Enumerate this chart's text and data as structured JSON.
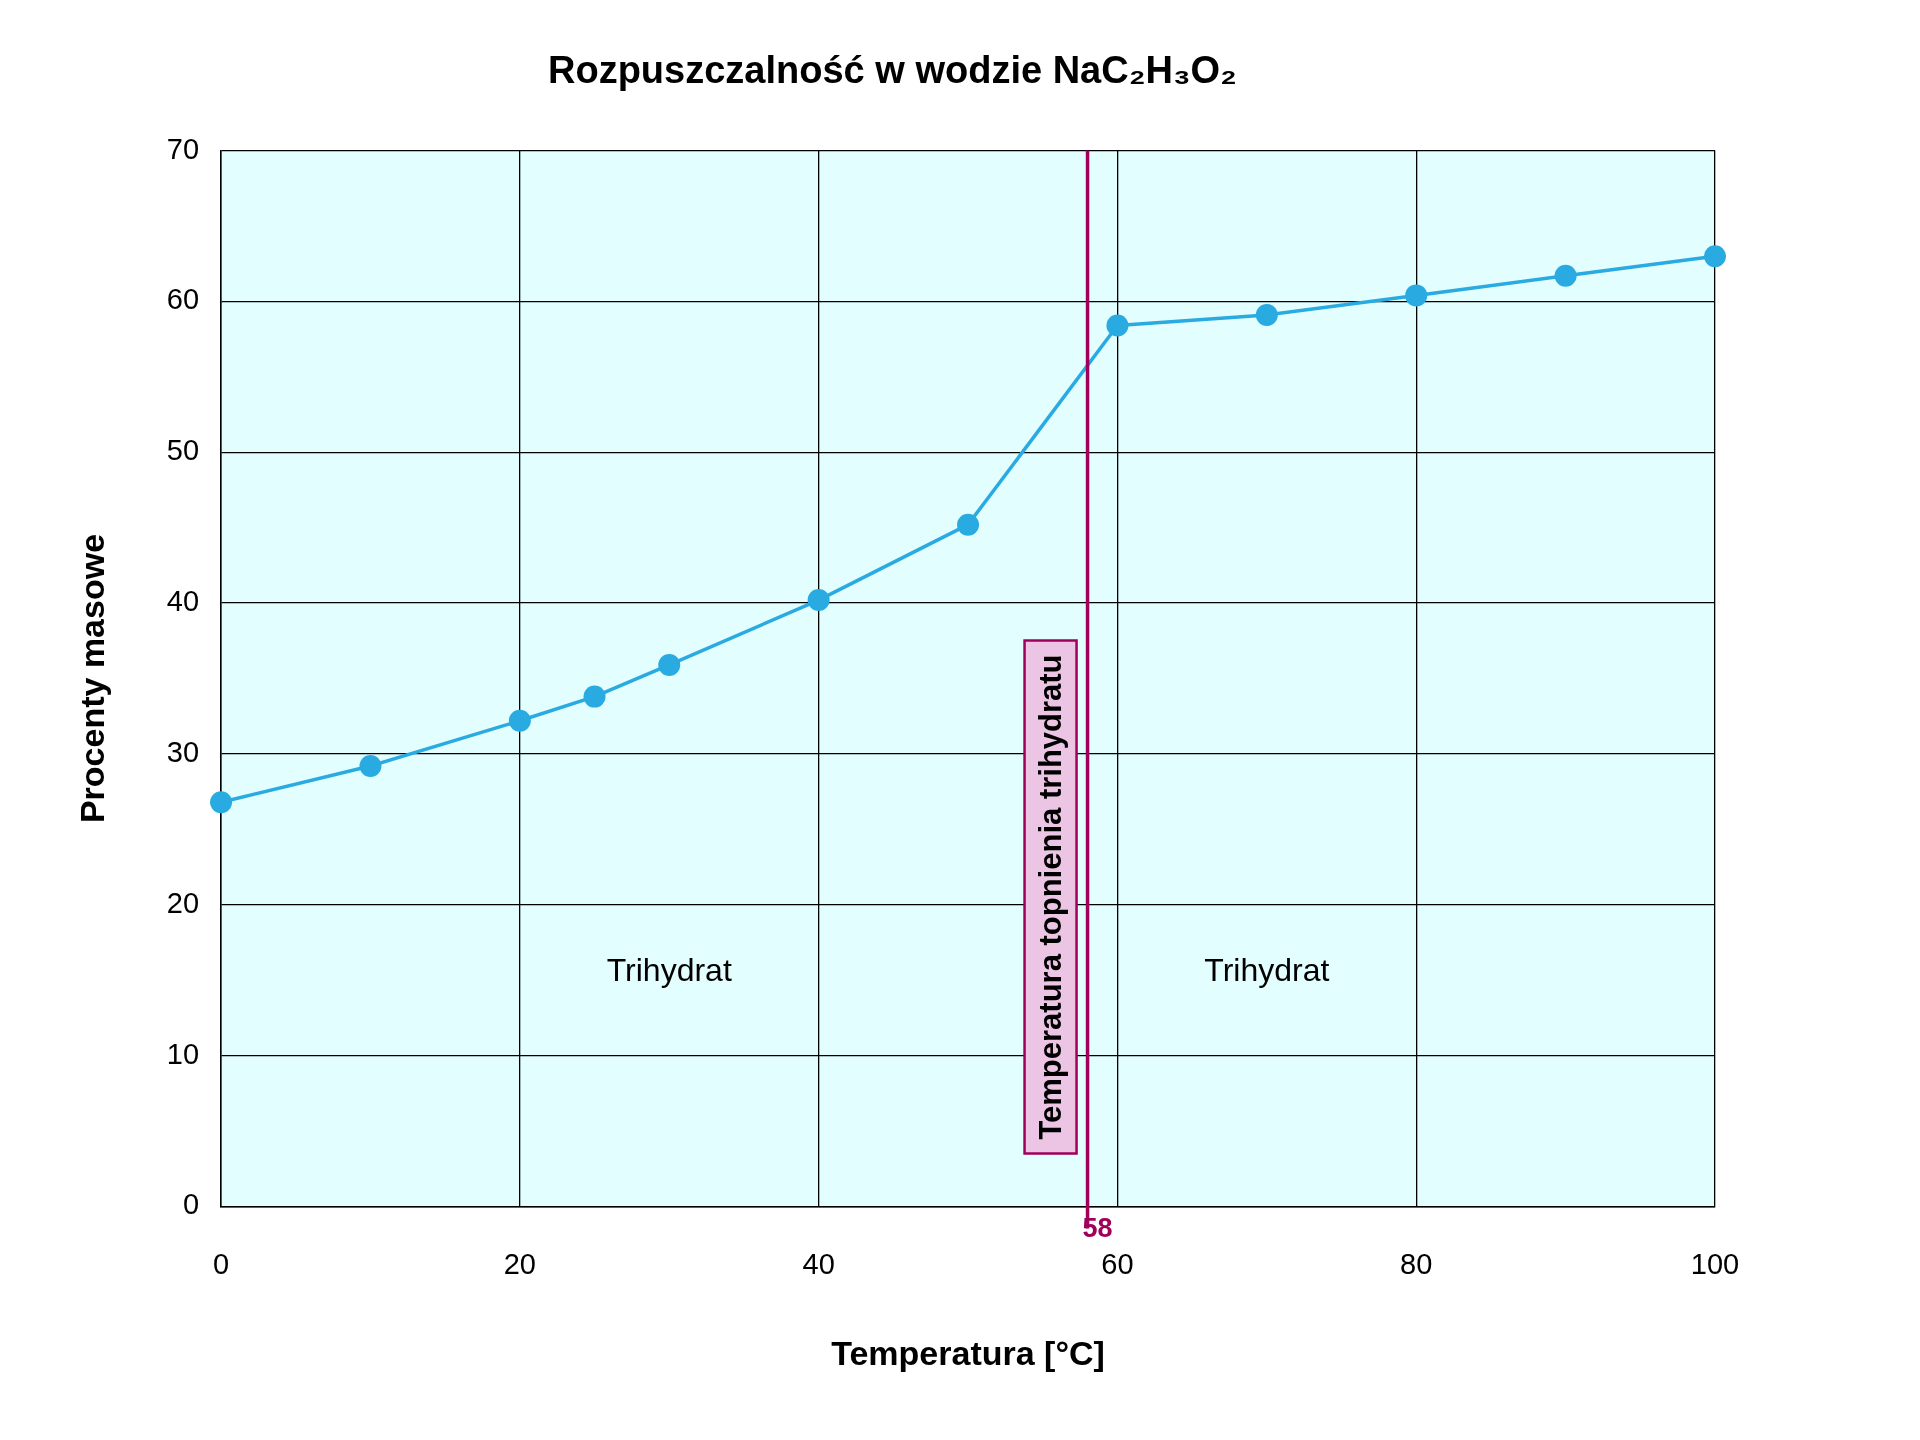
{
  "chart_data": {
    "type": "line",
    "title": "Rozpuszczalność w wodzie NaC₂H₃O₂",
    "xlabel": "Temperatura [°C]",
    "ylabel": "Procenty masowe",
    "series": [
      {
        "color": "#29abe2",
        "x": [
          0,
          10,
          20,
          25,
          30,
          40,
          50,
          60,
          70,
          80,
          90,
          100
        ],
        "values": [
          26.8,
          29.2,
          32.2,
          33.8,
          35.9,
          40.2,
          45.2,
          58.4,
          59.1,
          60.4,
          61.7,
          63.0
        ]
      }
    ],
    "xlim": [
      0,
      100
    ],
    "xticks": [
      0,
      20,
      40,
      60,
      80,
      100
    ],
    "ylim": [
      0,
      70
    ],
    "yticks": [
      0,
      10,
      20,
      30,
      40,
      50,
      60,
      70
    ],
    "ref_lines": [
      {
        "axis": "x",
        "value": 58,
        "label": "Temperatura topnienia trihydratu",
        "color": "#a0005a"
      }
    ],
    "annotations": [
      "58",
      "Trihydrat",
      "Trihydrat"
    ],
    "grid": true,
    "legend": false,
    "marker": "circle",
    "line_style": "solid"
  }
}
